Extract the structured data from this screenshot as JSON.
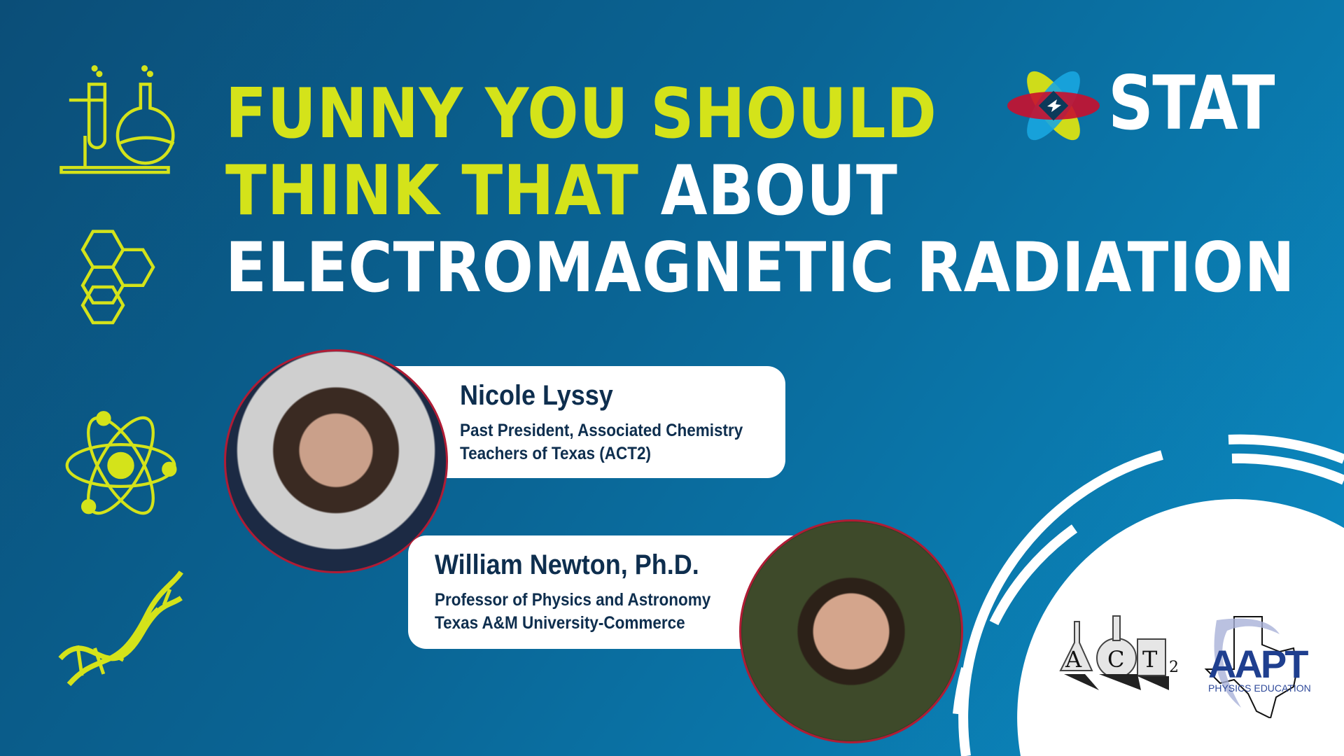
{
  "title": {
    "line1_highlight": "FUNNY YOU SHOULD",
    "line2_highlight": "THINK THAT",
    "line2_rest": " ABOUT",
    "line3": "ELECTROMAGNETIC RADIATION"
  },
  "brand": {
    "logo_text": "STAT"
  },
  "speakers": [
    {
      "name": "Nicole Lyssy",
      "role_line1": "Past President, Associated Chemistry",
      "role_line2": "Teachers of Texas (ACT2)"
    },
    {
      "name": "William Newton, Ph.D.",
      "role_line1": "Professor of Physics and Astronomy",
      "role_line2": "Texas A&M University-Commerce"
    }
  ],
  "partner_logos": {
    "act2": "ACT2",
    "aapt": "AAPT",
    "aapt_sub": "PHYSICS EDUCATION"
  },
  "colors": {
    "accent": "#d4e31a",
    "text_dark": "#0e2e4e",
    "photo_border": "#b01c35"
  },
  "icons": [
    "lab-flask-icon",
    "hexagon-molecule-icon",
    "atom-icon",
    "dna-icon"
  ]
}
